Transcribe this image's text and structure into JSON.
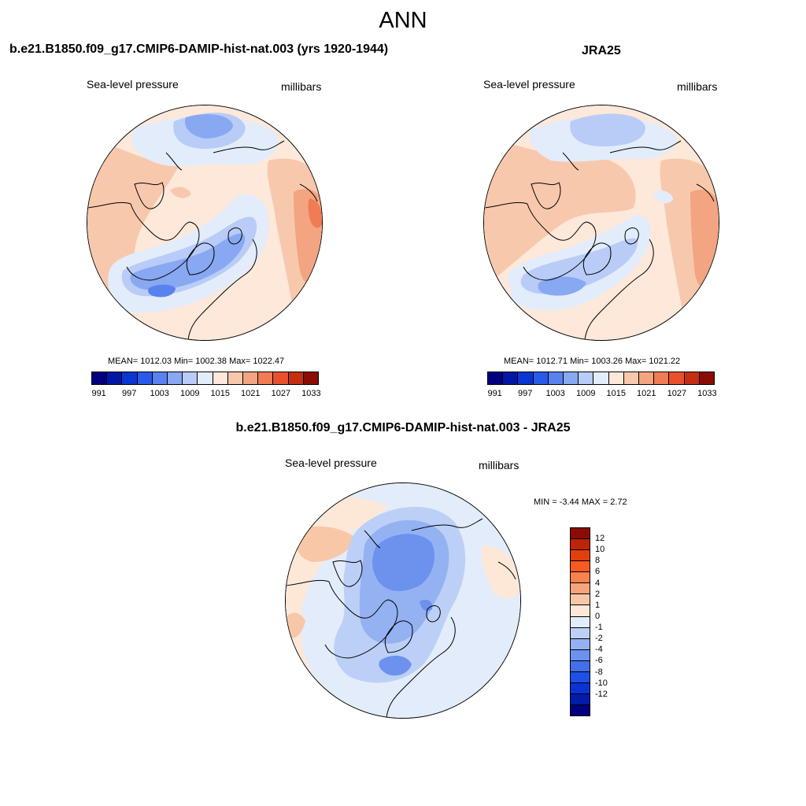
{
  "title": "ANN",
  "panels": [
    {
      "title": "b.e21.B1850.f09_g17.CMIP6-DAMIP-hist-nat.003 (yrs 1920-1944)",
      "left_label": "Sea-level pressure",
      "right_label": "millibars",
      "stats": "MEAN= 1012.03  Min= 1002.38  Max= 1022.47"
    },
    {
      "title": "JRA25",
      "left_label": "Sea-level pressure",
      "right_label": "millibars",
      "stats": "MEAN= 1012.71  Min= 1003.26  Max= 1021.22"
    },
    {
      "title": "b.e21.B1850.f09_g17.CMIP6-DAMIP-hist-nat.003 - JRA25",
      "left_label": "Sea-level pressure",
      "right_label": "millibars",
      "stats": "MIN =  -3.44 MAX =   2.72"
    }
  ],
  "colorbar_main": {
    "colors": [
      "#000080",
      "#0018a8",
      "#0a36d2",
      "#2a5ae8",
      "#5a82ee",
      "#88a8f2",
      "#b8ccf7",
      "#e2ecfb",
      "#fde8da",
      "#f8c8ad",
      "#f3a480",
      "#ef7c54",
      "#e9502e",
      "#c62e12",
      "#8b0c04"
    ],
    "tick_labels": [
      "991",
      "997",
      "1003",
      "1009",
      "1015",
      "1021",
      "1027",
      "1033"
    ]
  },
  "colorbar_diff": {
    "colors": [
      "#8b0c04",
      "#bd2408",
      "#e0400e",
      "#fa5a20",
      "#f8814e",
      "#f6a47a",
      "#f8c7a8",
      "#fde8d8",
      "#e2ecfb",
      "#bcd0f7",
      "#94b2f2",
      "#6c92ee",
      "#4270ea",
      "#1e4fe6",
      "#0a32d6",
      "#001da8",
      "#000080"
    ],
    "tick_labels": [
      "12",
      "10",
      "8",
      "6",
      "4",
      "2",
      "1",
      "0",
      "-1",
      "-2",
      "-4",
      "-6",
      "-8",
      "-10",
      "-12"
    ]
  }
}
